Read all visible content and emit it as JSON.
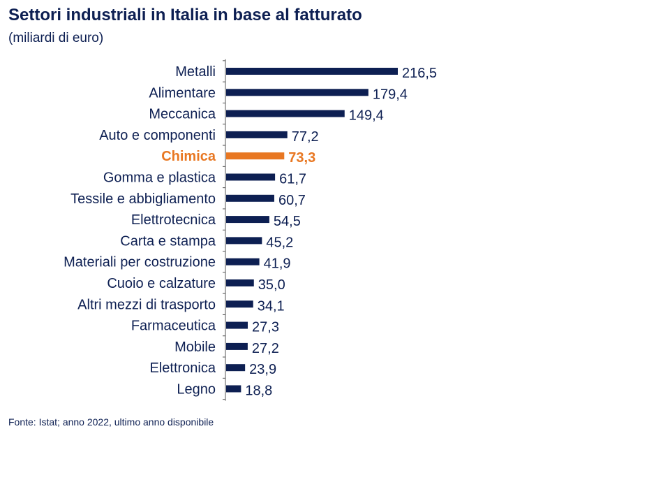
{
  "chart_data": {
    "type": "bar",
    "orientation": "horizontal",
    "title": "Settori industriali in Italia in base al fatturato",
    "subtitle": "(miliardi di euro)",
    "source": "Fonte: Istat; anno 2022, ultimo anno disponibile",
    "categories": [
      "Metalli",
      "Alimentare",
      "Meccanica",
      "Auto e componenti",
      "Chimica",
      "Gomma e plastica",
      "Tessile e abbigliamento",
      "Elettrotecnica",
      "Carta e stampa",
      "Materiali per costruzione",
      "Cuoio e calzature",
      "Altri mezzi di trasporto",
      "Farmaceutica",
      "Mobile",
      "Elettronica",
      "Legno"
    ],
    "values": [
      216.5,
      179.4,
      149.4,
      77.2,
      73.3,
      61.7,
      60.7,
      54.5,
      45.2,
      41.9,
      35.0,
      34.1,
      27.3,
      27.2,
      23.9,
      18.8
    ],
    "value_labels": [
      "216,5",
      "179,4",
      "149,4",
      "77,2",
      "73,3",
      "61,7",
      "60,7",
      "54,5",
      "45,2",
      "41,9",
      "35,0",
      "34,1",
      "27,3",
      "27,2",
      "23,9",
      "18,8"
    ],
    "highlight": "Chimica",
    "xlim": [
      0,
      216.5
    ],
    "grid": false,
    "colors": {
      "bar": "#0d1f52",
      "highlight": "#e87722",
      "text": "#0d1f52",
      "axis": "#555555"
    }
  }
}
